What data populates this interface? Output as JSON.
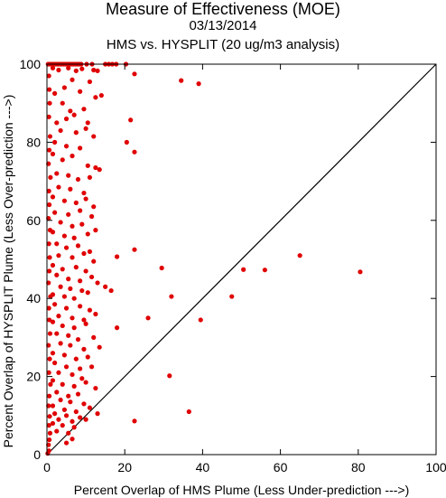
{
  "chart_data": {
    "type": "scatter",
    "title": "Measure of Effectiveness (MOE)",
    "subtitle": "03/13/2014",
    "subtitle2": "HMS vs. HYSPLIT  (20 ug/m3 analysis)",
    "xlabel": "Percent Overlap of HMS Plume (Less Under-prediction --->)",
    "ylabel": "Percent Overlap of HYSPLIT Plume (Less Over-prediction --->)",
    "xlim": [
      0,
      100
    ],
    "ylim": [
      0,
      100
    ],
    "xticks": [
      0,
      20,
      40,
      60,
      80,
      100
    ],
    "yticks": [
      0,
      20,
      40,
      60,
      80,
      100
    ],
    "reference_line": {
      "from": [
        0,
        0
      ],
      "to": [
        100,
        100
      ],
      "color": "#000000"
    },
    "grid": false,
    "point_color": "#e00000",
    "points": [
      [
        0.2,
        0.3
      ],
      [
        0.5,
        1.0
      ],
      [
        0.4,
        2.5
      ],
      [
        0.6,
        3.8
      ],
      [
        0.8,
        5.5
      ],
      [
        0.5,
        7.5
      ],
      [
        0.7,
        9.8
      ],
      [
        0.4,
        12.5
      ],
      [
        0.6,
        15.0
      ],
      [
        0.9,
        18.0
      ],
      [
        0.5,
        21.0
      ],
      [
        0.7,
        24.5
      ],
      [
        0.4,
        28.0
      ],
      [
        0.8,
        31.0
      ],
      [
        0.6,
        34.5
      ],
      [
        0.5,
        37.5
      ],
      [
        0.9,
        40.5
      ],
      [
        0.4,
        44.0
      ],
      [
        0.6,
        47.0
      ],
      [
        0.7,
        50.5
      ],
      [
        0.5,
        54.0
      ],
      [
        0.8,
        57.5
      ],
      [
        0.4,
        60.5
      ],
      [
        0.6,
        64.0
      ],
      [
        0.5,
        67.5
      ],
      [
        0.9,
        71.0
      ],
      [
        0.4,
        74.5
      ],
      [
        0.6,
        78.0
      ],
      [
        0.8,
        81.5
      ],
      [
        0.5,
        86.5
      ],
      [
        0.7,
        90.0
      ],
      [
        0.6,
        93.5
      ],
      [
        0.5,
        97.0
      ],
      [
        0.3,
        100
      ],
      [
        0.8,
        100
      ],
      [
        1.3,
        100
      ],
      [
        1.8,
        100
      ],
      [
        2.3,
        100
      ],
      [
        2.8,
        100
      ],
      [
        3.3,
        100
      ],
      [
        3.8,
        100
      ],
      [
        4.3,
        100
      ],
      [
        4.8,
        100
      ],
      [
        5.3,
        100
      ],
      [
        5.8,
        100
      ],
      [
        6.3,
        100
      ],
      [
        6.8,
        100
      ],
      [
        7.3,
        100
      ],
      [
        7.8,
        100
      ],
      [
        8.3,
        100
      ],
      [
        8.8,
        100
      ],
      [
        10.2,
        100
      ],
      [
        11.6,
        100
      ],
      [
        15.0,
        100
      ],
      [
        15.9,
        100
      ],
      [
        16.8,
        100
      ],
      [
        17.8,
        100
      ],
      [
        20.3,
        100
      ],
      [
        1.5,
        99.0
      ],
      [
        3.0,
        98.5
      ],
      [
        5.5,
        99.0
      ],
      [
        7.5,
        98.3
      ],
      [
        9.0,
        98.8
      ],
      [
        12.0,
        98.5
      ],
      [
        13.0,
        98.3
      ],
      [
        22.5,
        97.5
      ],
      [
        34.5,
        95.8
      ],
      [
        39.0,
        95.0
      ],
      [
        2.0,
        92.5
      ],
      [
        4.5,
        94.0
      ],
      [
        6.5,
        96.0
      ],
      [
        8.5,
        93.0
      ],
      [
        11.0,
        95.5
      ],
      [
        12.5,
        91.5
      ],
      [
        14.0,
        92.0
      ],
      [
        4.0,
        90.0
      ],
      [
        6.0,
        88.0
      ],
      [
        9.5,
        88.5
      ],
      [
        2.5,
        85.0
      ],
      [
        5.0,
        86.0
      ],
      [
        7.0,
        87.0
      ],
      [
        10.5,
        85.0
      ],
      [
        21.5,
        85.7
      ],
      [
        3.5,
        83.0
      ],
      [
        7.5,
        82.5
      ],
      [
        10.0,
        83.5
      ],
      [
        12.0,
        81.5
      ],
      [
        2.0,
        80.0
      ],
      [
        5.0,
        79.0
      ],
      [
        8.5,
        78.5
      ],
      [
        20.5,
        80.0
      ],
      [
        22.5,
        77.5
      ],
      [
        1.5,
        77.0
      ],
      [
        4.0,
        75.5
      ],
      [
        6.5,
        76.5
      ],
      [
        10.5,
        74.0
      ],
      [
        12.5,
        73.5
      ],
      [
        13.5,
        73.0
      ],
      [
        2.5,
        72.0
      ],
      [
        5.5,
        71.5
      ],
      [
        8.0,
        70.5
      ],
      [
        11.0,
        71.0
      ],
      [
        3.0,
        68.5
      ],
      [
        6.0,
        68.0
      ],
      [
        9.5,
        67.0
      ],
      [
        1.5,
        66.0
      ],
      [
        4.5,
        65.0
      ],
      [
        7.5,
        64.5
      ],
      [
        10.0,
        65.5
      ],
      [
        12.0,
        63.5
      ],
      [
        2.0,
        62.0
      ],
      [
        5.5,
        61.5
      ],
      [
        8.5,
        62.5
      ],
      [
        11.5,
        61.0
      ],
      [
        3.5,
        59.5
      ],
      [
        6.5,
        58.5
      ],
      [
        9.0,
        59.0
      ],
      [
        12.5,
        57.5
      ],
      [
        1.5,
        57.0
      ],
      [
        4.5,
        56.0
      ],
      [
        7.0,
        55.5
      ],
      [
        10.5,
        56.5
      ],
      [
        2.5,
        54.0
      ],
      [
        5.0,
        53.0
      ],
      [
        8.0,
        53.5
      ],
      [
        11.0,
        52.0
      ],
      [
        22.5,
        52.5
      ],
      [
        3.0,
        51.0
      ],
      [
        6.5,
        50.5
      ],
      [
        9.5,
        51.5
      ],
      [
        18.0,
        50.7
      ],
      [
        12.0,
        49.5
      ],
      [
        1.5,
        48.5
      ],
      [
        4.0,
        47.5
      ],
      [
        7.5,
        48.0
      ],
      [
        10.0,
        47.0
      ],
      [
        29.5,
        47.8
      ],
      [
        50.5,
        47.4
      ],
      [
        56.0,
        47.3
      ],
      [
        65.0,
        51.0
      ],
      [
        80.5,
        46.8
      ],
      [
        2.5,
        46.0
      ],
      [
        5.5,
        45.0
      ],
      [
        8.5,
        44.5
      ],
      [
        11.5,
        45.5
      ],
      [
        13.0,
        44.0
      ],
      [
        3.5,
        43.0
      ],
      [
        6.0,
        42.5
      ],
      [
        9.0,
        42.0
      ],
      [
        15.0,
        43.0
      ],
      [
        16.5,
        42.0
      ],
      [
        1.5,
        41.0
      ],
      [
        4.5,
        40.5
      ],
      [
        7.0,
        40.0
      ],
      [
        10.5,
        41.5
      ],
      [
        32.0,
        40.5
      ],
      [
        47.5,
        40.5
      ],
      [
        2.0,
        38.5
      ],
      [
        5.0,
        37.5
      ],
      [
        8.5,
        38.0
      ],
      [
        11.0,
        37.0
      ],
      [
        12.5,
        36.0
      ],
      [
        3.0,
        35.5
      ],
      [
        6.5,
        35.0
      ],
      [
        9.5,
        34.5
      ],
      [
        26.0,
        35.0
      ],
      [
        39.5,
        34.5
      ],
      [
        1.5,
        34.0
      ],
      [
        4.0,
        33.0
      ],
      [
        7.0,
        32.5
      ],
      [
        10.0,
        33.5
      ],
      [
        18.0,
        32.5
      ],
      [
        2.5,
        31.0
      ],
      [
        5.5,
        30.5
      ],
      [
        8.0,
        29.5
      ],
      [
        12.0,
        30.0
      ],
      [
        3.5,
        28.5
      ],
      [
        6.0,
        28.0
      ],
      [
        9.5,
        27.0
      ],
      [
        13.5,
        27.5
      ],
      [
        1.5,
        26.0
      ],
      [
        4.5,
        25.5
      ],
      [
        7.5,
        24.5
      ],
      [
        10.5,
        25.0
      ],
      [
        2.0,
        23.5
      ],
      [
        5.0,
        22.5
      ],
      [
        8.5,
        22.0
      ],
      [
        11.5,
        22.5
      ],
      [
        3.0,
        21.0
      ],
      [
        6.5,
        20.5
      ],
      [
        9.0,
        19.5
      ],
      [
        31.5,
        20.2
      ],
      [
        1.5,
        19.0
      ],
      [
        4.0,
        18.0
      ],
      [
        7.0,
        17.5
      ],
      [
        10.0,
        18.5
      ],
      [
        12.5,
        17.0
      ],
      [
        2.5,
        16.0
      ],
      [
        5.5,
        15.0
      ],
      [
        8.0,
        15.5
      ],
      [
        3.5,
        14.0
      ],
      [
        6.0,
        13.5
      ],
      [
        9.5,
        13.0
      ],
      [
        1.5,
        12.5
      ],
      [
        4.5,
        11.5
      ],
      [
        7.5,
        11.0
      ],
      [
        11.0,
        12.0
      ],
      [
        2.0,
        10.5
      ],
      [
        5.0,
        10.0
      ],
      [
        8.5,
        9.5
      ],
      [
        13.0,
        10.5
      ],
      [
        36.5,
        11.0
      ],
      [
        3.0,
        9.0
      ],
      [
        6.5,
        8.5
      ],
      [
        10.0,
        9.0
      ],
      [
        1.5,
        8.0
      ],
      [
        4.0,
        7.5
      ],
      [
        7.0,
        7.0
      ],
      [
        22.5,
        8.6
      ],
      [
        2.5,
        6.0
      ],
      [
        5.5,
        5.5
      ],
      [
        6.5,
        4.0
      ],
      [
        5.0,
        3.0
      ]
    ]
  }
}
